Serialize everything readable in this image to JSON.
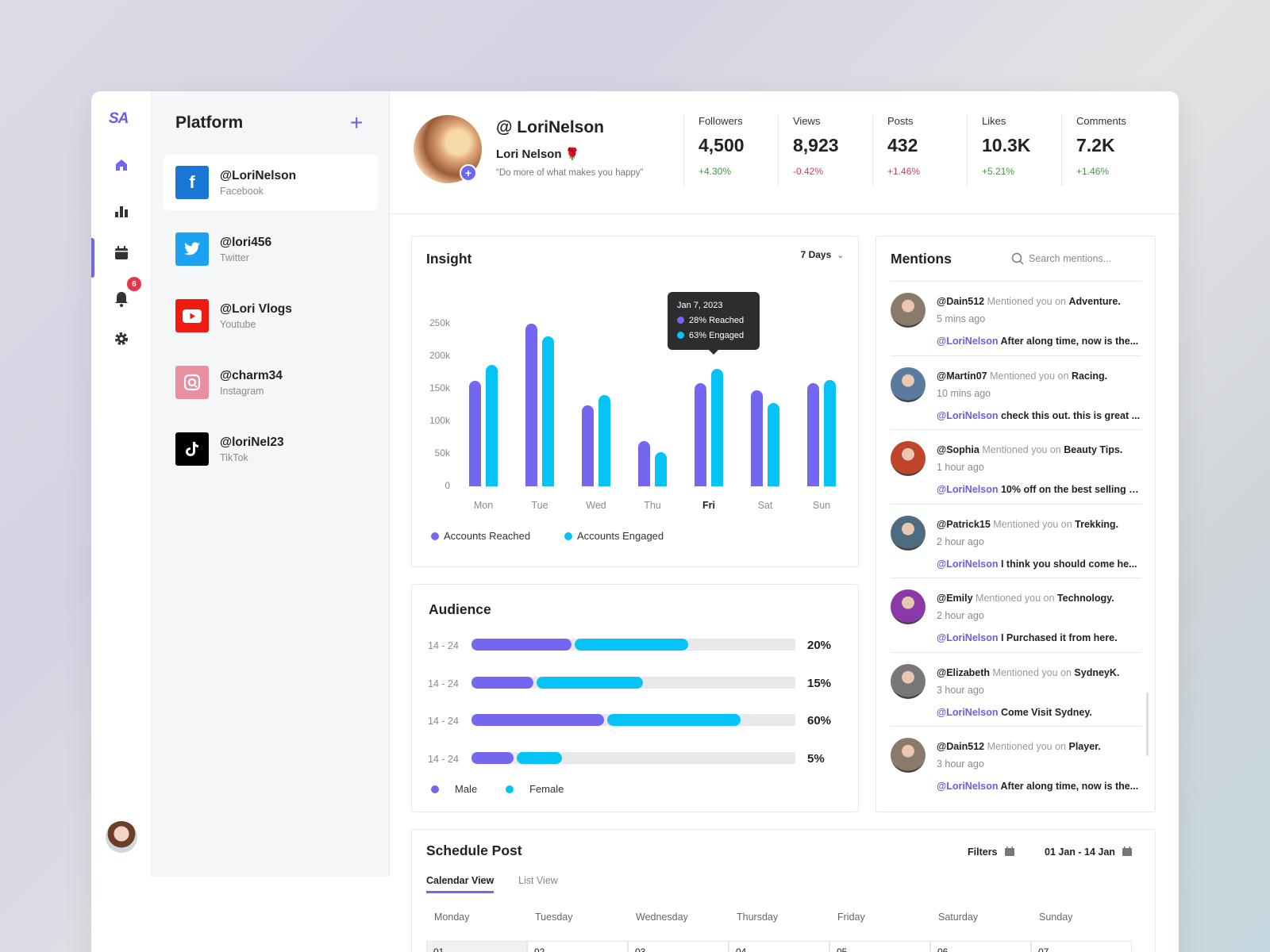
{
  "logo": "SA",
  "rail": {
    "items": [
      {
        "name": "home",
        "active": true
      },
      {
        "name": "analytics"
      },
      {
        "name": "calendar"
      },
      {
        "name": "notifications",
        "badge": "6"
      },
      {
        "name": "settings"
      }
    ]
  },
  "platform": {
    "title": "Platform",
    "add_label": "+",
    "accounts": [
      {
        "handle": "@LoriNelson",
        "network": "Facebook",
        "color": "#1877d4",
        "icon": "f",
        "active": true
      },
      {
        "handle": "@lori456",
        "network": "Twitter",
        "color": "#1da1f2",
        "icon": "twitter-bird"
      },
      {
        "handle": "@Lori Vlogs",
        "network": "Youtube",
        "color": "#f01b13",
        "icon": "play"
      },
      {
        "handle": "@charm34",
        "network": "Instagram",
        "color": "#e8909f",
        "icon": "camera"
      },
      {
        "handle": "@loriNel23",
        "network": "TikTok",
        "color": "#000000",
        "icon": "note"
      }
    ]
  },
  "profile": {
    "handle": "@ LoriNelson",
    "name": "Lori Nelson 🌹",
    "bio": "“Do more of what makes you happy”"
  },
  "stats": [
    {
      "label": "Followers",
      "value": "4,500",
      "change": "+4.30%",
      "trend": "pos"
    },
    {
      "label": "Views",
      "value": "8,923",
      "change": "-0.42%",
      "trend": "neg"
    },
    {
      "label": "Posts",
      "value": "432",
      "change": "+1.46%",
      "trend": "neg"
    },
    {
      "label": "Likes",
      "value": "10.3K",
      "change": "+5.21%",
      "trend": "pos"
    },
    {
      "label": "Comments",
      "value": "7.2K",
      "change": "+1.46%",
      "trend": "pos"
    }
  ],
  "insight": {
    "title": "Insight",
    "range": "7 Days",
    "tooltip": {
      "date": "Jan 7, 2023",
      "reached": "28% Reached",
      "engaged": "63% Engaged"
    },
    "legend": [
      "Accounts Reached",
      "Accounts Engaged"
    ],
    "colors": {
      "reached": "#7367f0",
      "engaged": "#06c3f5"
    }
  },
  "chart_data": [
    {
      "type": "bar",
      "title": "Insight",
      "categories": [
        "Mon",
        "Tue",
        "Wed",
        "Thu",
        "Fri",
        "Sat",
        "Sun"
      ],
      "series": [
        {
          "name": "Accounts Reached",
          "values": [
            162,
            250,
            125,
            70,
            158,
            147,
            158
          ]
        },
        {
          "name": "Accounts Engaged",
          "values": [
            187,
            230,
            140,
            52,
            180,
            128,
            164
          ]
        }
      ],
      "yticks": [
        "0",
        "50k",
        "100k",
        "150k",
        "200k",
        "250k"
      ],
      "ylim": [
        0,
        250
      ],
      "xlabel": "",
      "ylabel": "",
      "highlight": "Fri",
      "legend_position": "bottom"
    },
    {
      "type": "bar",
      "title": "Audience",
      "orientation": "horizontal-stacked",
      "categories": [
        "14 - 24",
        "14 - 24",
        "14 - 24",
        "14 - 24"
      ],
      "series": [
        {
          "name": "Male",
          "values": [
            31,
            19,
            41,
            13
          ]
        },
        {
          "name": "Female",
          "values": [
            35,
            33,
            41,
            14
          ]
        }
      ],
      "totals": [
        "20%",
        "15%",
        "60%",
        "5%"
      ]
    }
  ],
  "audience": {
    "title": "Audience",
    "rows": [
      {
        "label": "14 - 24",
        "male": 31,
        "female": 35,
        "pct": "20%"
      },
      {
        "label": "14 - 24",
        "male": 19,
        "female": 33,
        "pct": "15%"
      },
      {
        "label": "14 - 24",
        "male": 41,
        "female": 41,
        "pct": "60%"
      },
      {
        "label": "14 - 24",
        "male": 13,
        "female": 14,
        "pct": "5%"
      }
    ],
    "legend": [
      "Male",
      "Female"
    ]
  },
  "mentions": {
    "title": "Mentions",
    "search_placeholder": "Search mentions...",
    "items": [
      {
        "user": "@Dain512",
        "verb": "Mentioned you on",
        "topic": "Adventure.",
        "time": "5 mins ago",
        "at": "@LoriNelson",
        "text": "After along time, now is the...",
        "avatar": "#8a7a6a"
      },
      {
        "user": "@Martin07",
        "verb": "Mentioned you on",
        "topic": "Racing.",
        "time": "10 mins ago",
        "at": "@LoriNelson",
        "text": "check this out. this is great ...",
        "avatar": "#5a7aa0"
      },
      {
        "user": "@Sophia",
        "verb": "Mentioned you on",
        "topic": "Beauty Tips.",
        "time": "1 hour ago",
        "at": "@LoriNelson",
        "text": "10% off on the best selling p...",
        "avatar": "#c0452a"
      },
      {
        "user": "@Patrick15",
        "verb": "Mentioned you on",
        "topic": "Trekking.",
        "time": "2 hour ago",
        "at": "@LoriNelson",
        "text": "I think you should come he...",
        "avatar": "#4d6c80"
      },
      {
        "user": "@Emily",
        "verb": "Mentioned you on",
        "topic": "Technology.",
        "time": "2 hour ago",
        "at": "@LoriNelson",
        "text": "I Purchased it from here.",
        "avatar": "#8a3aa8"
      },
      {
        "user": "@Elizabeth",
        "verb": "Mentioned you on",
        "topic": "SydneyK.",
        "time": "3 hour ago",
        "at": "@LoriNelson",
        "text": "Come Visit Sydney.",
        "avatar": "#777777"
      },
      {
        "user": "@Dain512",
        "verb": "Mentioned you on",
        "topic": "Player.",
        "time": "3 hour ago",
        "at": "@LoriNelson",
        "text": "After along time, now is the...",
        "avatar": "#8a7a6a"
      }
    ]
  },
  "schedule": {
    "title": "Schedule Post",
    "filters_label": "Filters",
    "date_range": "01 Jan - 14 Jan",
    "tabs": [
      {
        "label": "Calendar View",
        "active": true
      },
      {
        "label": "List View"
      }
    ],
    "days": [
      "Monday",
      "Tuesday",
      "Wednesday",
      "Thursday",
      "Friday",
      "Saturday",
      "Sunday"
    ],
    "dates": [
      "01",
      "02",
      "03",
      "04",
      "05",
      "06",
      "07"
    ]
  }
}
